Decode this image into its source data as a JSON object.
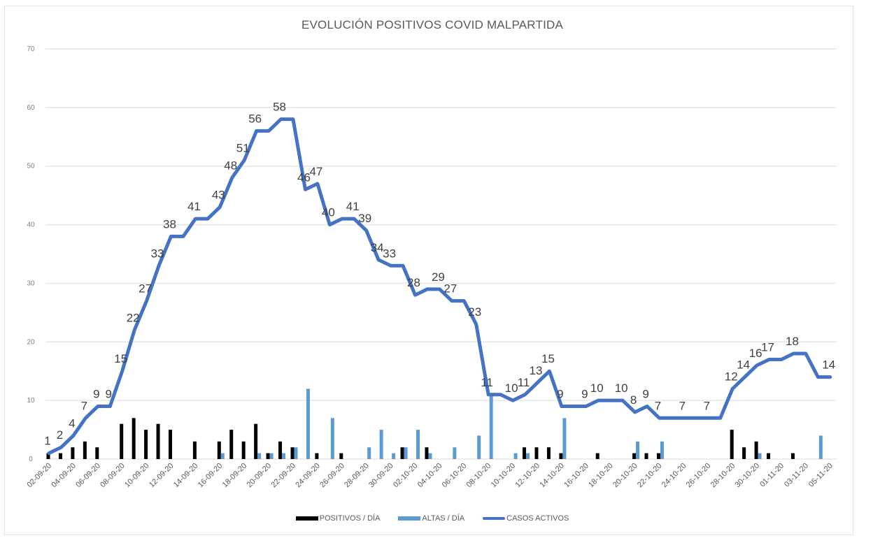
{
  "chart_data": {
    "type": "bar+line",
    "title": "EVOLUCIÓN POSITIVOS COVID MALPARTIDA",
    "xlabel": "",
    "ylabel": "",
    "ylim": [
      0,
      70
    ],
    "yticks": [
      0,
      10,
      20,
      30,
      40,
      50,
      60,
      70
    ],
    "grid": true,
    "legend_position": "bottom",
    "x": [
      "02-09-20",
      "03-09-20",
      "04-09-20",
      "05-09-20",
      "06-09-20",
      "07-09-20",
      "08-09-20",
      "09-09-20",
      "10-09-20",
      "11-09-20",
      "12-09-20",
      "13-09-20",
      "14-09-20",
      "15-09-20",
      "16-09-20",
      "17-09-20",
      "18-09-20",
      "19-09-20",
      "20-09-20",
      "21-09-20",
      "22-09-20",
      "23-09-20",
      "24-09-20",
      "25-09-20",
      "26-09-20",
      "27-09-20",
      "28-09-20",
      "29-09-20",
      "30-09-20",
      "01-10-20",
      "02-10-20",
      "03-10-20",
      "04-10-20",
      "05-10-20",
      "06-10-20",
      "07-10-20",
      "08-10-20",
      "09-10-20",
      "10-10-20",
      "11-10-20",
      "12-10-20",
      "13-10-20",
      "14-10-20",
      "15-10-20",
      "16-10-20",
      "17-10-20",
      "18-10-20",
      "19-10-20",
      "20-10-20",
      "21-10-20",
      "22-10-20",
      "23-10-20",
      "24-10-20",
      "25-10-20",
      "26-10-20",
      "27-10-20",
      "28-10-20",
      "29-10-20",
      "30-10-20",
      "31-10-20",
      "01-11-20",
      "02-11-20",
      "03-11-20",
      "04-11-20",
      "05-11-20"
    ],
    "xtick_labels": [
      "02-09-20",
      "04-09-20",
      "06-09-20",
      "08-09-20",
      "10-09-20",
      "12-09-20",
      "14-09-20",
      "16-09-20",
      "18-09-20",
      "20-09-20",
      "22-09-20",
      "24-09-20",
      "26-09-20",
      "28-09-20",
      "30-09-20",
      "02-10-20",
      "04-10-20",
      "06-10-20",
      "08-10-20",
      "10-10-20",
      "12-10-20",
      "14-10-20",
      "16-10-20",
      "18-10-20",
      "20-10-20",
      "22-10-20",
      "24-10-20",
      "26-10-20",
      "28-10-20",
      "30-10-20",
      "01-11-20",
      "03-11-20",
      "05-11-20"
    ],
    "series": [
      {
        "name": "POSITIVOS / DÍA",
        "type": "bar",
        "color": "#000000",
        "values": [
          1,
          1,
          2,
          3,
          2,
          0,
          6,
          7,
          5,
          6,
          5,
          0,
          3,
          0,
          3,
          5,
          3,
          6,
          1,
          3,
          2,
          0,
          1,
          0,
          1,
          0,
          0,
          0,
          0,
          2,
          0,
          2,
          0,
          0,
          0,
          0,
          0,
          0,
          0,
          2,
          2,
          2,
          1,
          0,
          0,
          1,
          0,
          0,
          1,
          1,
          1,
          0,
          0,
          0,
          0,
          0,
          5,
          2,
          3,
          1,
          0,
          1,
          0,
          0,
          0
        ]
      },
      {
        "name": "ALTAS / DÍA",
        "type": "bar",
        "color": "#5b9bd5",
        "values": [
          0,
          0,
          0,
          0,
          0,
          0,
          0,
          0,
          0,
          0,
          0,
          0,
          0,
          0,
          1,
          0,
          0,
          1,
          1,
          1,
          2,
          12,
          0,
          7,
          0,
          0,
          2,
          5,
          1,
          2,
          5,
          1,
          0,
          2,
          0,
          4,
          11,
          0,
          1,
          1,
          0,
          0,
          7,
          0,
          0,
          0,
          0,
          0,
          3,
          0,
          3,
          0,
          0,
          0,
          0,
          0,
          0,
          0,
          1,
          0,
          0,
          0,
          0,
          4,
          0
        ]
      },
      {
        "name": "CASOS ACTIVOS",
        "type": "line",
        "color": "#4472c4",
        "values": [
          1,
          2,
          4,
          7,
          9,
          9,
          15,
          22,
          27,
          33,
          38,
          38,
          41,
          41,
          43,
          48,
          51,
          56,
          56,
          58,
          58,
          46,
          47,
          40,
          41,
          41,
          39,
          34,
          33,
          33,
          28,
          29,
          29,
          27,
          27,
          23,
          11,
          11,
          10,
          11,
          13,
          15,
          9,
          9,
          9,
          10,
          10,
          10,
          8,
          9,
          7,
          7,
          7,
          7,
          7,
          7,
          12,
          14,
          16,
          17,
          17,
          18,
          18,
          14,
          14
        ],
        "labeled_points": [
          0,
          1,
          2,
          3,
          4,
          5,
          6,
          7,
          8,
          9,
          10,
          12,
          14,
          15,
          16,
          17,
          19,
          21,
          22,
          23,
          25,
          26,
          27,
          28,
          30,
          32,
          33,
          35,
          36,
          38,
          39,
          40,
          41,
          42,
          44,
          45,
          47,
          48,
          49,
          50,
          52,
          54,
          56,
          57,
          58,
          59,
          61,
          64
        ]
      }
    ]
  },
  "legend": {
    "items": [
      {
        "label": "POSITIVOS / DÍA",
        "color": "#000000"
      },
      {
        "label": "ALTAS / DÍA",
        "color": "#5b9bd5"
      },
      {
        "label": "CASOS ACTIVOS",
        "color": "#4472c4"
      }
    ]
  }
}
